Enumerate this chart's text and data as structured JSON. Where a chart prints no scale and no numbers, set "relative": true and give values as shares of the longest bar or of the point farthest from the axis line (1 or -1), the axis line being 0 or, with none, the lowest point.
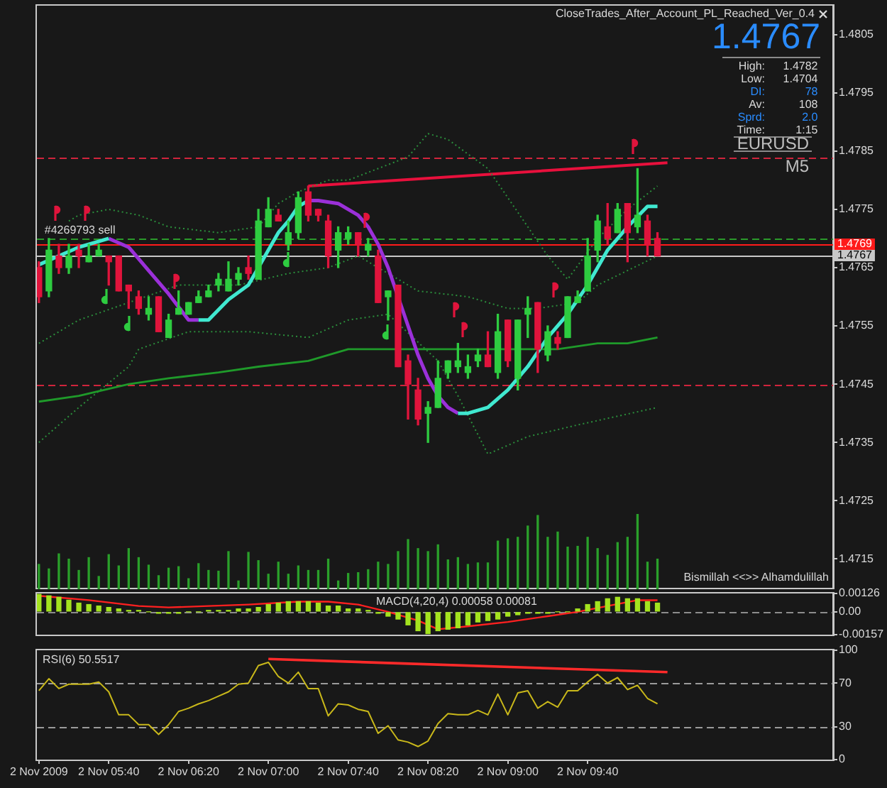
{
  "chart_data": [
    {
      "type": "candlestick",
      "title": "CloseTrades_After_Account_PL_Reached_Ver_0.4",
      "x": [
        "2009-11-02T05:05",
        "2009-11-02T05:10",
        "2009-11-02T05:15",
        "2009-11-02T05:20",
        "2009-11-02T05:25",
        "2009-11-02T05:30",
        "2009-11-02T05:35",
        "2009-11-02T05:40",
        "2009-11-02T05:45",
        "2009-11-02T05:50",
        "2009-11-02T05:55",
        "2009-11-02T06:00",
        "2009-11-02T06:05",
        "2009-11-02T06:10",
        "2009-11-02T06:15",
        "2009-11-02T06:20",
        "2009-11-02T06:25",
        "2009-11-02T06:30",
        "2009-11-02T06:35",
        "2009-11-02T06:40",
        "2009-11-02T06:45",
        "2009-11-02T06:50",
        "2009-11-02T06:55",
        "2009-11-02T07:00",
        "2009-11-02T07:05",
        "2009-11-02T07:10",
        "2009-11-02T07:15",
        "2009-11-02T07:20",
        "2009-11-02T07:25",
        "2009-11-02T07:30",
        "2009-11-02T07:35",
        "2009-11-02T07:40",
        "2009-11-02T07:45",
        "2009-11-02T07:50",
        "2009-11-02T07:55",
        "2009-11-02T08:00",
        "2009-11-02T08:05",
        "2009-11-02T08:10",
        "2009-11-02T08:15",
        "2009-11-02T08:20",
        "2009-11-02T08:25",
        "2009-11-02T08:30",
        "2009-11-02T08:35",
        "2009-11-02T08:40",
        "2009-11-02T08:45",
        "2009-11-02T08:50",
        "2009-11-02T08:55",
        "2009-11-02T09:00",
        "2009-11-02T09:05",
        "2009-11-02T09:10",
        "2009-11-02T09:15",
        "2009-11-02T09:20",
        "2009-11-02T09:25",
        "2009-11-02T09:30",
        "2009-11-02T09:35",
        "2009-11-02T09:40",
        "2009-11-02T09:45",
        "2009-11-02T09:50",
        "2009-11-02T09:55",
        "2009-11-02T10:00",
        "2009-11-02T10:05",
        "2009-11-02T10:10",
        "2009-11-02T10:15"
      ],
      "ohlc": [
        [
          1.4765,
          1.4766,
          1.4759,
          1.476
        ],
        [
          1.4761,
          1.477,
          1.476,
          1.4768
        ],
        [
          1.4767,
          1.4769,
          1.4764,
          1.4765
        ],
        [
          1.4765,
          1.4769,
          1.4764,
          1.4767
        ],
        [
          1.4768,
          1.4769,
          1.4765,
          1.4767
        ],
        [
          1.4766,
          1.4769,
          1.4766,
          1.4767
        ],
        [
          1.4767,
          1.4769,
          1.4767,
          1.4768
        ],
        [
          1.4767,
          1.4767,
          1.4762,
          1.4766
        ],
        [
          1.4767,
          1.4767,
          1.4761,
          1.4761
        ],
        [
          1.4762,
          1.4762,
          1.4758,
          1.4761
        ],
        [
          1.476,
          1.4761,
          1.4757,
          1.4758
        ],
        [
          1.4757,
          1.476,
          1.4756,
          1.4758
        ],
        [
          1.476,
          1.476,
          1.4754,
          1.4754
        ],
        [
          1.4753,
          1.4757,
          1.4753,
          1.4756
        ],
        [
          1.4757,
          1.4761,
          1.4757,
          1.4758
        ],
        [
          1.4757,
          1.4759,
          1.4757,
          1.4759
        ],
        [
          1.4759,
          1.4761,
          1.4759,
          1.476
        ],
        [
          1.476,
          1.4762,
          1.476,
          1.4761
        ],
        [
          1.4762,
          1.4764,
          1.4761,
          1.4763
        ],
        [
          1.4761,
          1.4766,
          1.4761,
          1.4763
        ],
        [
          1.4763,
          1.4765,
          1.4762,
          1.4764
        ],
        [
          1.4765,
          1.4767,
          1.4763,
          1.4764
        ],
        [
          1.4763,
          1.4775,
          1.4763,
          1.4773
        ],
        [
          1.4772,
          1.4777,
          1.4772,
          1.4775
        ],
        [
          1.4774,
          1.4775,
          1.4773,
          1.4773
        ],
        [
          1.4769,
          1.4773,
          1.4768,
          1.4771
        ],
        [
          1.4771,
          1.4778,
          1.477,
          1.4777
        ],
        [
          1.4778,
          1.4779,
          1.4773,
          1.4774
        ],
        [
          1.4775,
          1.4775,
          1.4773,
          1.4774
        ],
        [
          1.4773,
          1.4774,
          1.4765,
          1.4767
        ],
        [
          1.4768,
          1.4772,
          1.4765,
          1.4771
        ],
        [
          1.477,
          1.4772,
          1.4769,
          1.4771
        ],
        [
          1.4771,
          1.4771,
          1.4767,
          1.4769
        ],
        [
          1.4768,
          1.477,
          1.4767,
          1.4769
        ],
        [
          1.4767,
          1.4768,
          1.4759,
          1.4759
        ],
        [
          1.476,
          1.4761,
          1.4756,
          1.4761
        ],
        [
          1.4762,
          1.4762,
          1.4748,
          1.4748
        ],
        [
          1.4749,
          1.475,
          1.4739,
          1.4745
        ],
        [
          1.4744,
          1.4746,
          1.4738,
          1.4739
        ],
        [
          1.474,
          1.4742,
          1.4735,
          1.4741
        ],
        [
          1.4741,
          1.4749,
          1.4741,
          1.4746
        ],
        [
          1.4747,
          1.4749,
          1.4746,
          1.4749
        ],
        [
          1.4748,
          1.4752,
          1.4747,
          1.4749
        ],
        [
          1.4747,
          1.475,
          1.4746,
          1.4748
        ],
        [
          1.4749,
          1.4751,
          1.4748,
          1.475
        ],
        [
          1.475,
          1.4754,
          1.4748,
          1.4748
        ],
        [
          1.4747,
          1.4757,
          1.4746,
          1.4754
        ],
        [
          1.4756,
          1.4756,
          1.4748,
          1.4749
        ],
        [
          1.4746,
          1.4756,
          1.4744,
          1.4756
        ],
        [
          1.4757,
          1.476,
          1.4753,
          1.4758
        ],
        [
          1.4759,
          1.4759,
          1.4747,
          1.4751
        ],
        [
          1.475,
          1.4755,
          1.4749,
          1.4754
        ],
        [
          1.4753,
          1.4754,
          1.4751,
          1.4752
        ],
        [
          1.4753,
          1.476,
          1.4753,
          1.476
        ],
        [
          1.4759,
          1.4761,
          1.4759,
          1.476
        ],
        [
          1.4761,
          1.477,
          1.4761,
          1.4767
        ],
        [
          1.4768,
          1.4774,
          1.4766,
          1.4773
        ],
        [
          1.4772,
          1.4776,
          1.4769,
          1.477
        ],
        [
          1.4771,
          1.4776,
          1.4771,
          1.4775
        ],
        [
          1.4776,
          1.4776,
          1.4766,
          1.4771
        ],
        [
          1.4772,
          1.4782,
          1.4771,
          1.4774
        ],
        [
          1.4773,
          1.4774,
          1.4767,
          1.4769
        ],
        [
          1.477,
          1.4771,
          1.4767,
          1.4767
        ]
      ],
      "colors": [
        "#e0143c",
        "#2ecc40",
        "#e0143c",
        "#2ecc40",
        "#e0143c",
        "#2ecc40",
        "#2ecc40",
        "#e0143c",
        "#e0143c",
        "#e0143c",
        "#e0143c",
        "#2ecc40",
        "#e0143c",
        "#2ecc40",
        "#2ecc40",
        "#2ecc40",
        "#2ecc40",
        "#2ecc40",
        "#2ecc40",
        "#2ecc40",
        "#2ecc40",
        "#e0143c",
        "#2ecc40",
        "#2ecc40",
        "#e0143c",
        "#2ecc40",
        "#2ecc40",
        "#e0143c",
        "#e0143c",
        "#e0143c",
        "#2ecc40",
        "#2ecc40",
        "#e0143c",
        "#2ecc40",
        "#e0143c",
        "#2ecc40",
        "#e0143c",
        "#e0143c",
        "#e0143c",
        "#2ecc40",
        "#2ecc40",
        "#2ecc40",
        "#2ecc40",
        "#2ecc40",
        "#2ecc40",
        "#e0143c",
        "#2ecc40",
        "#e0143c",
        "#2ecc40",
        "#2ecc40",
        "#e0143c",
        "#2ecc40",
        "#e0143c",
        "#2ecc40",
        "#2ecc40",
        "#2ecc40",
        "#2ecc40",
        "#e0143c",
        "#2ecc40",
        "#e0143c",
        "#2ecc40",
        "#e0143c",
        "#e0143c"
      ],
      "series": [
        {
          "type": "line",
          "color": "#40e8d0",
          "x": [
            "2009-11-02T05:05",
            "2009-11-02T05:15",
            "2009-11-02T05:25",
            "2009-11-02T05:40",
            "2009-11-02T06:00",
            "2009-11-02T06:25",
            "2009-11-02T06:30",
            "2009-11-02T06:40",
            "2009-11-02T06:50",
            "2009-11-02T06:55",
            "2009-11-02T07:00",
            "2009-11-02T07:05",
            "2009-11-02T07:10",
            "2009-11-02T07:15",
            "2009-11-02T07:20",
            "2009-11-02T08:00",
            "2009-11-02T08:35",
            "2009-11-02T08:40",
            "2009-11-02T08:50",
            "2009-11-02T09:00",
            "2009-11-02T09:10",
            "2009-11-02T09:20",
            "2009-11-02T09:30",
            "2009-11-02T09:40",
            "2009-11-02T09:50",
            "2009-11-02T10:00",
            "2009-11-02T10:10",
            "2009-11-02T10:15"
          ],
          "values": [
            1.47655,
            1.4767,
            1.47685,
            1.477,
            null,
            1.4756,
            1.4756,
            1.47595,
            1.4762,
            1.4765,
            1.4768,
            1.4771,
            1.4773,
            1.47755,
            1.47765,
            null,
            1.474,
            1.474,
            1.4741,
            1.4744,
            1.4748,
            1.4753,
            1.4757,
            1.4762,
            1.4768,
            1.4772,
            1.47755,
            1.47755
          ]
        },
        {
          "type": "line",
          "color": "#9b30d9",
          "x": [
            "2009-11-02T05:40",
            "2009-11-02T05:50",
            "2009-11-02T06:00",
            "2009-11-02T06:10",
            "2009-11-02T06:20",
            "2009-11-02T06:25",
            "2009-11-02T06:50",
            "2009-11-02T07:20",
            "2009-11-02T07:25",
            "2009-11-02T07:35",
            "2009-11-02T07:45",
            "2009-11-02T07:50",
            "2009-11-02T07:55",
            "2009-11-02T08:00",
            "2009-11-02T08:05",
            "2009-11-02T08:10",
            "2009-11-02T08:15",
            "2009-11-02T08:20",
            "2009-11-02T08:25",
            "2009-11-02T08:30",
            "2009-11-02T08:35"
          ],
          "values": [
            1.477,
            1.47685,
            1.47645,
            1.47605,
            1.4756,
            1.4756,
            null,
            1.47765,
            1.47765,
            1.4776,
            1.4774,
            1.4772,
            1.4769,
            1.4765,
            1.476,
            1.4755,
            1.475,
            1.4746,
            1.4743,
            1.4741,
            1.474
          ]
        },
        {
          "type": "line",
          "color": "#1f9a2a",
          "x": [
            "2009-11-02T05:05",
            "2009-11-02T05:25",
            "2009-11-02T05:50",
            "2009-11-02T06:10",
            "2009-11-02T06:35",
            "2009-11-02T06:55",
            "2009-11-02T07:20",
            "2009-11-02T07:40",
            "2009-11-02T08:05",
            "2009-11-02T08:30",
            "2009-11-02T08:50",
            "2009-11-02T09:25",
            "2009-11-02T09:45",
            "2009-11-02T10:00",
            "2009-11-02T10:15"
          ],
          "values": [
            1.4742,
            1.4743,
            1.4745,
            1.4746,
            1.4747,
            1.4748,
            1.4749,
            1.4751,
            1.4751,
            1.4751,
            1.4751,
            1.4751,
            1.4752,
            1.4752,
            1.4753
          ]
        },
        {
          "type": "line",
          "color": "#2b8f3c",
          "line_style": "dotted",
          "x": [
            "2009-11-02T05:20",
            "2009-11-02T05:25",
            "2009-11-02T05:40",
            "2009-11-02T05:55",
            "2009-11-02T06:10",
            "2009-11-02T06:35",
            "2009-11-02T06:55",
            "2009-11-02T07:05",
            "2009-11-02T07:15",
            "2009-11-02T07:30",
            "2009-11-02T07:40",
            "2009-11-02T08:10",
            "2009-11-02T08:20",
            "2009-11-02T08:30",
            "2009-11-02T08:50",
            "2009-11-02T09:10",
            "2009-11-02T09:20",
            "2009-11-02T09:30",
            "2009-11-02T09:45",
            "2009-11-02T10:00",
            "2009-11-02T10:15"
          ],
          "values": [
            1.4773,
            1.4774,
            1.4775,
            1.4774,
            1.4772,
            1.4771,
            1.4772,
            1.4776,
            1.4778,
            1.478,
            1.478,
            1.4784,
            1.4788,
            1.4787,
            1.4782,
            1.4772,
            1.4767,
            1.4763,
            1.477,
            1.4775,
            1.4779
          ]
        },
        {
          "type": "line",
          "color": "#2b8f3c",
          "line_style": "dotted",
          "x": [
            "2009-11-02T05:05",
            "2009-11-02T05:25",
            "2009-11-02T06:15",
            "2009-11-02T06:45",
            "2009-11-02T07:10",
            "2009-11-02T07:30",
            "2009-11-02T07:45",
            "2009-11-02T07:55",
            "2009-11-02T08:15",
            "2009-11-02T08:40",
            "2009-11-02T09:00",
            "2009-11-02T09:15",
            "2009-11-02T09:35",
            "2009-11-02T09:45",
            "2009-11-02T10:15"
          ],
          "values": [
            1.4752,
            1.4756,
            1.4762,
            1.4762,
            1.4764,
            1.4765,
            1.4767,
            1.4765,
            1.4761,
            1.476,
            1.4758,
            1.4758,
            1.4759,
            1.4762,
            1.4767
          ]
        },
        {
          "type": "line",
          "color": "#2b8f3c",
          "line_style": "dotted",
          "x": [
            "2009-11-02T05:05",
            "2009-11-02T05:25",
            "2009-11-02T05:50",
            "2009-11-02T05:55",
            "2009-11-02T06:20",
            "2009-11-02T06:50",
            "2009-11-02T07:20",
            "2009-11-02T07:40",
            "2009-11-02T08:00",
            "2009-11-02T08:25",
            "2009-11-02T08:35",
            "2009-11-02T08:50",
            "2009-11-02T09:10",
            "2009-11-02T09:35",
            "2009-11-02T10:15"
          ],
          "values": [
            1.4735,
            1.4741,
            1.4748,
            1.4751,
            1.4754,
            1.4754,
            1.4753,
            1.4756,
            1.4757,
            1.4749,
            1.4743,
            1.4733,
            1.4736,
            1.4738,
            1.4741
          ]
        },
        {
          "type": "line",
          "color": "#e8103c",
          "x": [
            "2009-11-02T07:20",
            "2009-11-02T10:20"
          ],
          "values": [
            1.4779,
            1.4783
          ]
        }
      ],
      "xlim": [
        "2009-11-02T05:04",
        "2009-11-02T11:43"
      ],
      "ylim": [
        1.471,
        1.481
      ],
      "yticks": [
        1.4715,
        1.4725,
        1.4735,
        1.4745,
        1.4755,
        1.4765,
        1.4775,
        1.4785,
        1.4795,
        1.4805
      ],
      "ref_lines": [
        {
          "axis": "y",
          "value": 1.4784,
          "color": "#d0243c",
          "line_style": "dashed"
        },
        {
          "axis": "y",
          "value": 1.4745,
          "color": "#d0243c",
          "line_style": "dashed"
        },
        {
          "axis": "y",
          "value": 1.477,
          "color": "#2a9a2a",
          "line_style": "dashed"
        },
        {
          "axis": "y",
          "value": 1.4769,
          "label": "1.4769",
          "color": "#ff1a1a"
        },
        {
          "axis": "y",
          "value": 1.4767,
          "label": "1.4767",
          "color": "#c8c8c8"
        }
      ],
      "annotations": [
        "1.4767",
        "High: 1.4782",
        "Low: 1.4704",
        "DI: 78",
        "Av: 108",
        "Sprd: 2.0",
        "Time: 1:15",
        "EURUSD",
        "M5",
        "Bismillah <<>> Alhamdulillah",
        {
          "text": "#4269793 sell",
          "x": "2009-11-02T05:05",
          "y": 1.4769
        }
      ],
      "tick_labels": "y"
    },
    {
      "type": "bar",
      "relative": true,
      "color": "#2aa02a",
      "x": [
        "2009-11-02T05:05",
        "2009-11-02T05:10",
        "2009-11-02T05:15",
        "2009-11-02T05:20",
        "2009-11-02T05:25",
        "2009-11-02T05:30",
        "2009-11-02T05:35",
        "2009-11-02T05:40",
        "2009-11-02T05:45",
        "2009-11-02T05:50",
        "2009-11-02T05:55",
        "2009-11-02T06:00",
        "2009-11-02T06:05",
        "2009-11-02T06:10",
        "2009-11-02T06:15",
        "2009-11-02T06:20",
        "2009-11-02T06:25",
        "2009-11-02T06:30",
        "2009-11-02T06:35",
        "2009-11-02T06:40",
        "2009-11-02T06:45",
        "2009-11-02T06:50",
        "2009-11-02T06:55",
        "2009-11-02T07:00",
        "2009-11-02T07:05",
        "2009-11-02T07:10",
        "2009-11-02T07:15",
        "2009-11-02T07:20",
        "2009-11-02T07:25",
        "2009-11-02T07:30",
        "2009-11-02T07:35",
        "2009-11-02T07:40",
        "2009-11-02T07:45",
        "2009-11-02T07:50",
        "2009-11-02T07:55",
        "2009-11-02T08:00",
        "2009-11-02T08:05",
        "2009-11-02T08:10",
        "2009-11-02T08:15",
        "2009-11-02T08:20",
        "2009-11-02T08:25",
        "2009-11-02T08:30",
        "2009-11-02T08:35",
        "2009-11-02T08:40",
        "2009-11-02T08:45",
        "2009-11-02T08:50",
        "2009-11-02T08:55",
        "2009-11-02T09:00",
        "2009-11-02T09:05",
        "2009-11-02T09:10",
        "2009-11-02T09:15",
        "2009-11-02T09:20",
        "2009-11-02T09:25",
        "2009-11-02T09:30",
        "2009-11-02T09:35",
        "2009-11-02T09:40",
        "2009-11-02T09:45",
        "2009-11-02T09:50",
        "2009-11-02T09:55",
        "2009-11-02T10:00",
        "2009-11-02T10:05",
        "2009-11-02T10:10",
        "2009-11-02T10:15"
      ],
      "values": [
        0.33,
        0.27,
        0.47,
        0.4,
        0.25,
        0.42,
        0.17,
        0.46,
        0.31,
        0.54,
        0.42,
        0.32,
        0.18,
        0.28,
        0.3,
        0.14,
        0.34,
        0.25,
        0.24,
        0.5,
        0.11,
        0.49,
        0.38,
        0.2,
        0.36,
        0.2,
        0.31,
        0.25,
        0.25,
        0.4,
        0.11,
        0.21,
        0.22,
        0.26,
        0.36,
        0.33,
        0.5,
        0.66,
        0.54,
        0.5,
        0.59,
        0.39,
        0.42,
        0.33,
        0.35,
        0.35,
        0.64,
        0.67,
        0.69,
        0.84,
        0.98,
        0.69,
        0.76,
        0.56,
        0.57,
        0.69,
        0.54,
        0.45,
        0.62,
        0.69,
        1,
        0.36,
        0.4
      ],
      "xlim": [
        "2009-11-02T05:04",
        "2009-11-02T11:43"
      ],
      "tick_labels": false
    },
    {
      "type": "bar",
      "title": "MACD(4,20,4) 0.00058 0.00081",
      "x": [
        "2009-11-02T05:05",
        "2009-11-02T05:10",
        "2009-11-02T05:15",
        "2009-11-02T05:20",
        "2009-11-02T05:25",
        "2009-11-02T05:30",
        "2009-11-02T05:35",
        "2009-11-02T05:40",
        "2009-11-02T05:45",
        "2009-11-02T05:50",
        "2009-11-02T05:55",
        "2009-11-02T06:00",
        "2009-11-02T06:05",
        "2009-11-02T06:10",
        "2009-11-02T06:15",
        "2009-11-02T06:20",
        "2009-11-02T06:25",
        "2009-11-02T06:30",
        "2009-11-02T06:35",
        "2009-11-02T06:40",
        "2009-11-02T06:45",
        "2009-11-02T06:50",
        "2009-11-02T06:55",
        "2009-11-02T07:00",
        "2009-11-02T07:05",
        "2009-11-02T07:10",
        "2009-11-02T07:15",
        "2009-11-02T07:20",
        "2009-11-02T07:25",
        "2009-11-02T07:30",
        "2009-11-02T07:35",
        "2009-11-02T07:40",
        "2009-11-02T07:45",
        "2009-11-02T07:50",
        "2009-11-02T07:55",
        "2009-11-02T08:00",
        "2009-11-02T08:05",
        "2009-11-02T08:10",
        "2009-11-02T08:15",
        "2009-11-02T08:20",
        "2009-11-02T08:25",
        "2009-11-02T08:30",
        "2009-11-02T08:35",
        "2009-11-02T08:40",
        "2009-11-02T08:45",
        "2009-11-02T08:50",
        "2009-11-02T08:55",
        "2009-11-02T09:00",
        "2009-11-02T09:05",
        "2009-11-02T09:10",
        "2009-11-02T09:15",
        "2009-11-02T09:20",
        "2009-11-02T09:25",
        "2009-11-02T09:30",
        "2009-11-02T09:35",
        "2009-11-02T09:40",
        "2009-11-02T09:45",
        "2009-11-02T09:50",
        "2009-11-02T09:55",
        "2009-11-02T10:00",
        "2009-11-02T10:05",
        "2009-11-02T10:10",
        "2009-11-02T10:15"
      ],
      "series": [
        {
          "color": "#a4e31f",
          "values": [
            0.0012,
            0.0011,
            0.001,
            0.0008,
            0.0006,
            0.0005,
            0.0004,
            0.0003,
            0.0002,
            0.0001,
            0.0001,
            0,
            -0.0001,
            -0.0001,
            -0.0001,
            0,
            0,
            0.0001,
            0.0001,
            0.0001,
            0.0002,
            0.0002,
            0.0003,
            0.0005,
            0.0006,
            0.0007,
            0.0007,
            0.0007,
            0.0006,
            0.0004,
            0.0004,
            0.0002,
            0.0002,
            0.0001,
            -0.0001,
            -0.0003,
            -0.0005,
            -0.0009,
            -0.0013,
            -0.0015,
            -0.0013,
            -0.0012,
            -0.0011,
            -0.0009,
            -0.0007,
            -0.0006,
            -0.0005,
            -0.0003,
            -0.0002,
            -0.0001,
            -0.0001,
            -0.0001,
            0,
            0,
            0.0002,
            0.0005,
            0.0007,
            0.0009,
            0.001,
            0.0009,
            0.0009,
            0.0007,
            0.0006
          ]
        },
        {
          "type": "line",
          "color": "#ff2020",
          "x": [
            "2009-11-02T05:05",
            "2009-11-02T05:30",
            "2009-11-02T05:55",
            "2009-11-02T06:10",
            "2009-11-02T06:30",
            "2009-11-02T06:50",
            "2009-11-02T07:15",
            "2009-11-02T07:30",
            "2009-11-02T07:45",
            "2009-11-02T08:00",
            "2009-11-02T08:15",
            "2009-11-02T08:25",
            "2009-11-02T08:40",
            "2009-11-02T09:00",
            "2009-11-02T09:20",
            "2009-11-02T09:35",
            "2009-11-02T09:50",
            "2009-11-02T10:05",
            "2009-11-02T10:15"
          ],
          "values": [
            0.0011,
            0.0008,
            0.0004,
            0.0003,
            0.0004,
            0.0005,
            0.0007,
            0.0007,
            0.0005,
            0,
            -0.0006,
            -0.0012,
            -0.001,
            -0.0007,
            -0.0003,
            0,
            0.0004,
            0.0008,
            0.0008
          ]
        }
      ],
      "xlim": [
        "2009-11-02T05:04",
        "2009-11-02T11:43"
      ],
      "ylim": [
        -0.00157,
        0.00126
      ],
      "yticks": [
        -0.00157,
        {
          "value": 0,
          "label": "0.00"
        },
        0.00126
      ],
      "ref_lines": [
        {
          "axis": "y",
          "value": 0,
          "color": "#8c8c8c",
          "line_style": "dashed"
        }
      ],
      "tick_labels": "y"
    },
    {
      "type": "line",
      "title": "RSI(6) 50.5517",
      "x": [
        "2009-11-02T05:05",
        "2009-11-02T05:10",
        "2009-11-02T05:15",
        "2009-11-02T05:20",
        "2009-11-02T05:25",
        "2009-11-02T05:30",
        "2009-11-02T05:35",
        "2009-11-02T05:40",
        "2009-11-02T05:45",
        "2009-11-02T05:50",
        "2009-11-02T05:55",
        "2009-11-02T06:00",
        "2009-11-02T06:05",
        "2009-11-02T06:10",
        "2009-11-02T06:15",
        "2009-11-02T06:20",
        "2009-11-02T06:25",
        "2009-11-02T06:30",
        "2009-11-02T06:35",
        "2009-11-02T06:40",
        "2009-11-02T06:45",
        "2009-11-02T06:50",
        "2009-11-02T06:55",
        "2009-11-02T07:00",
        "2009-11-02T07:05",
        "2009-11-02T07:10",
        "2009-11-02T07:15",
        "2009-11-02T07:20",
        "2009-11-02T07:25",
        "2009-11-02T07:30",
        "2009-11-02T07:35",
        "2009-11-02T07:40",
        "2009-11-02T07:45",
        "2009-11-02T07:50",
        "2009-11-02T07:55",
        "2009-11-02T08:00",
        "2009-11-02T08:05",
        "2009-11-02T08:10",
        "2009-11-02T08:15",
        "2009-11-02T08:20",
        "2009-11-02T08:25",
        "2009-11-02T08:30",
        "2009-11-02T08:35",
        "2009-11-02T08:40",
        "2009-11-02T08:45",
        "2009-11-02T08:50",
        "2009-11-02T08:55",
        "2009-11-02T09:00",
        "2009-11-02T09:05",
        "2009-11-02T09:10",
        "2009-11-02T09:15",
        "2009-11-02T09:20",
        "2009-11-02T09:25",
        "2009-11-02T09:30",
        "2009-11-02T09:35",
        "2009-11-02T09:40",
        "2009-11-02T09:45",
        "2009-11-02T09:50",
        "2009-11-02T09:55",
        "2009-11-02T10:00",
        "2009-11-02T10:05",
        "2009-11-02T10:10",
        "2009-11-02T10:15"
      ],
      "series": [
        {
          "color": "#c9b81a",
          "values": [
            63,
            74,
            65,
            69,
            69,
            69,
            71,
            62,
            41,
            41,
            32,
            32,
            23,
            32,
            44,
            47,
            51,
            54,
            58,
            62,
            69,
            70,
            86,
            89,
            76,
            70,
            80,
            65,
            65,
            40,
            51,
            50,
            46,
            44,
            24,
            31,
            18,
            16,
            12,
            17,
            33,
            42,
            41,
            41,
            45,
            41,
            60,
            41,
            61,
            63,
            47,
            53,
            48,
            63,
            63,
            71,
            78,
            70,
            75,
            64,
            68,
            56,
            51
          ]
        },
        {
          "color": "#ff2a2a",
          "x": [
            "2009-11-02T07:00",
            "2009-11-02T10:20"
          ],
          "values": [
            92,
            80
          ]
        }
      ],
      "xlim": [
        "2009-11-02T05:04",
        "2009-11-02T11:43"
      ],
      "xticks": [
        {
          "value": "2009-11-02T05:05",
          "label": "2 Nov 2009"
        },
        {
          "value": "2009-11-02T05:40",
          "label": "2 Nov 05:40"
        },
        {
          "value": "2009-11-02T06:20",
          "label": "2 Nov 06:20"
        },
        {
          "value": "2009-11-02T07:00",
          "label": "2 Nov 07:00"
        },
        {
          "value": "2009-11-02T07:40",
          "label": "2 Nov 07:40"
        },
        {
          "value": "2009-11-02T08:20",
          "label": "2 Nov 08:20"
        },
        {
          "value": "2009-11-02T09:00",
          "label": "2 Nov 09:00"
        },
        {
          "value": "2009-11-02T09:40",
          "label": "2 Nov 09:40"
        }
      ],
      "ylim": [
        0,
        100
      ],
      "yticks": [
        0,
        30,
        70,
        100
      ],
      "ref_lines": [
        {
          "axis": "y",
          "value": 70,
          "color": "#9a9a9a",
          "line_style": "dashed"
        },
        {
          "axis": "y",
          "value": 30,
          "color": "#9a9a9a",
          "line_style": "dashed"
        }
      ]
    }
  ]
}
